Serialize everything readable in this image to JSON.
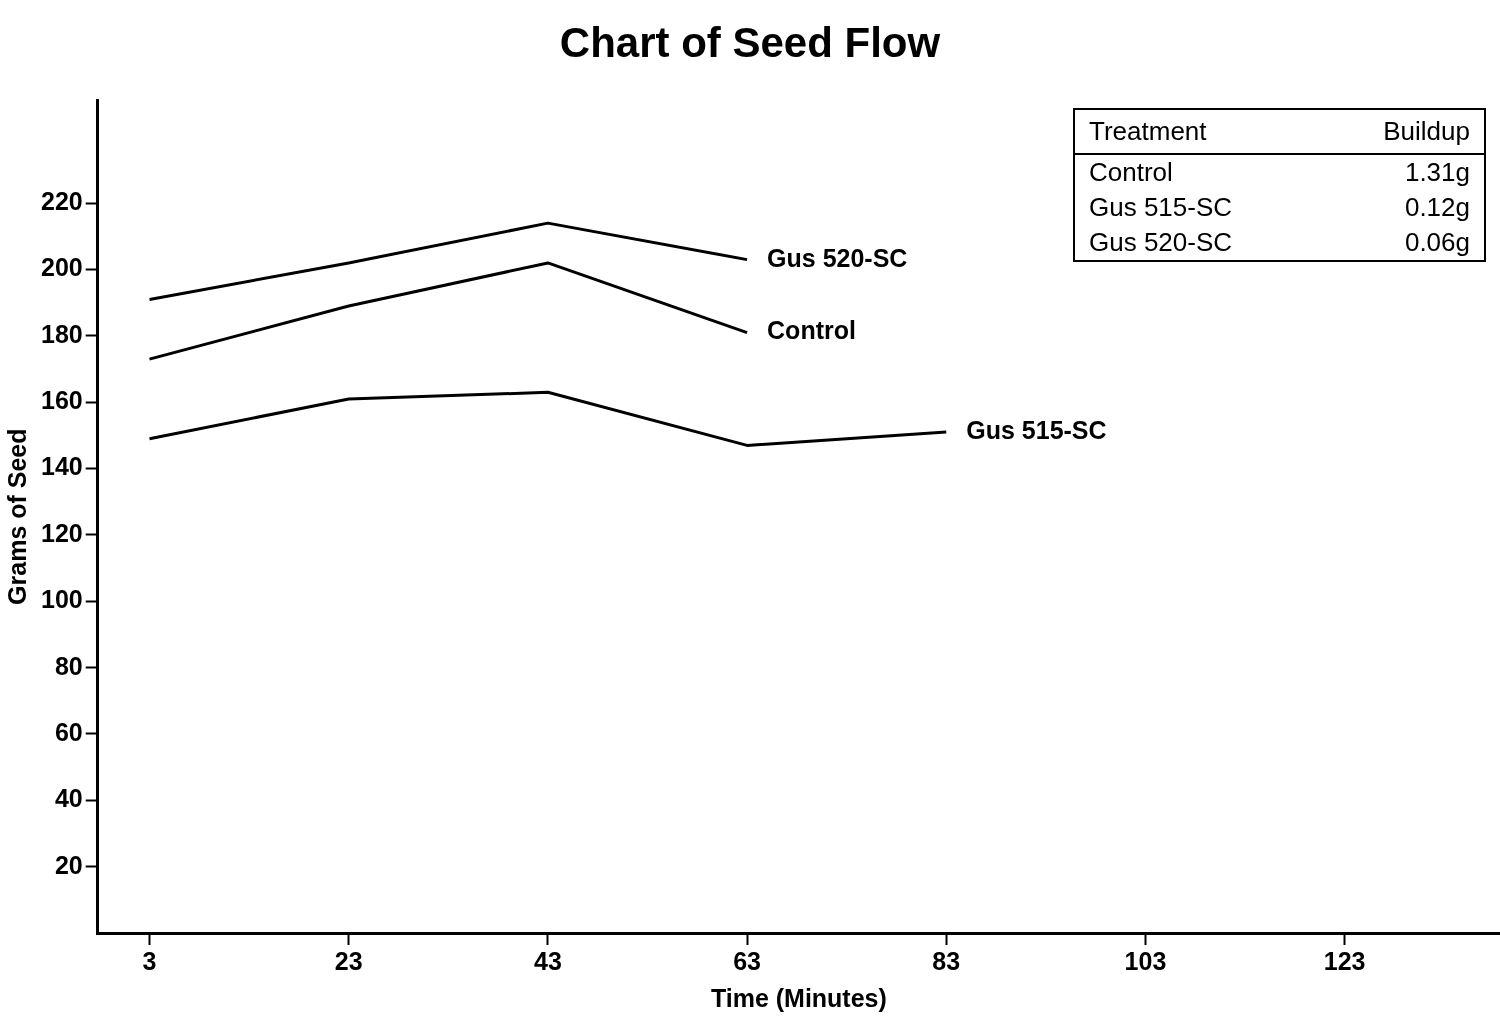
{
  "chart_data": {
    "type": "line",
    "title": "Chart of Seed Flow",
    "xlabel": "Time (Minutes)",
    "ylabel": "Grams of Seed",
    "xlim": [
      -2.2,
      138.6
    ],
    "xticks": [
      3,
      23,
      43,
      63,
      83,
      103,
      123
    ],
    "ylim": [
      0,
      251
    ],
    "yticks": [
      20,
      40,
      60,
      80,
      100,
      120,
      140,
      160,
      180,
      200,
      220
    ],
    "grid": false,
    "legend": false,
    "marker": "none",
    "line_style": "solid",
    "series": [
      {
        "name": "Gus 520-SC",
        "color": "#000000",
        "x": [
          3,
          23,
          43,
          63
        ],
        "values": [
          191,
          202,
          214,
          203
        ]
      },
      {
        "name": "Control",
        "color": "#000000",
        "x": [
          3,
          23,
          43,
          63
        ],
        "values": [
          173,
          189,
          202,
          181
        ]
      },
      {
        "name": "Gus 515-SC",
        "color": "#000000",
        "x": [
          3,
          23,
          43,
          63,
          83
        ],
        "values": [
          149,
          161,
          163,
          147,
          151
        ]
      }
    ],
    "annotations": [
      "Treatment",
      "Buildup",
      "Control",
      "1.31g",
      "Gus 515-SC",
      "0.12g",
      "Gus 520-SC",
      "0.06g"
    ]
  }
}
